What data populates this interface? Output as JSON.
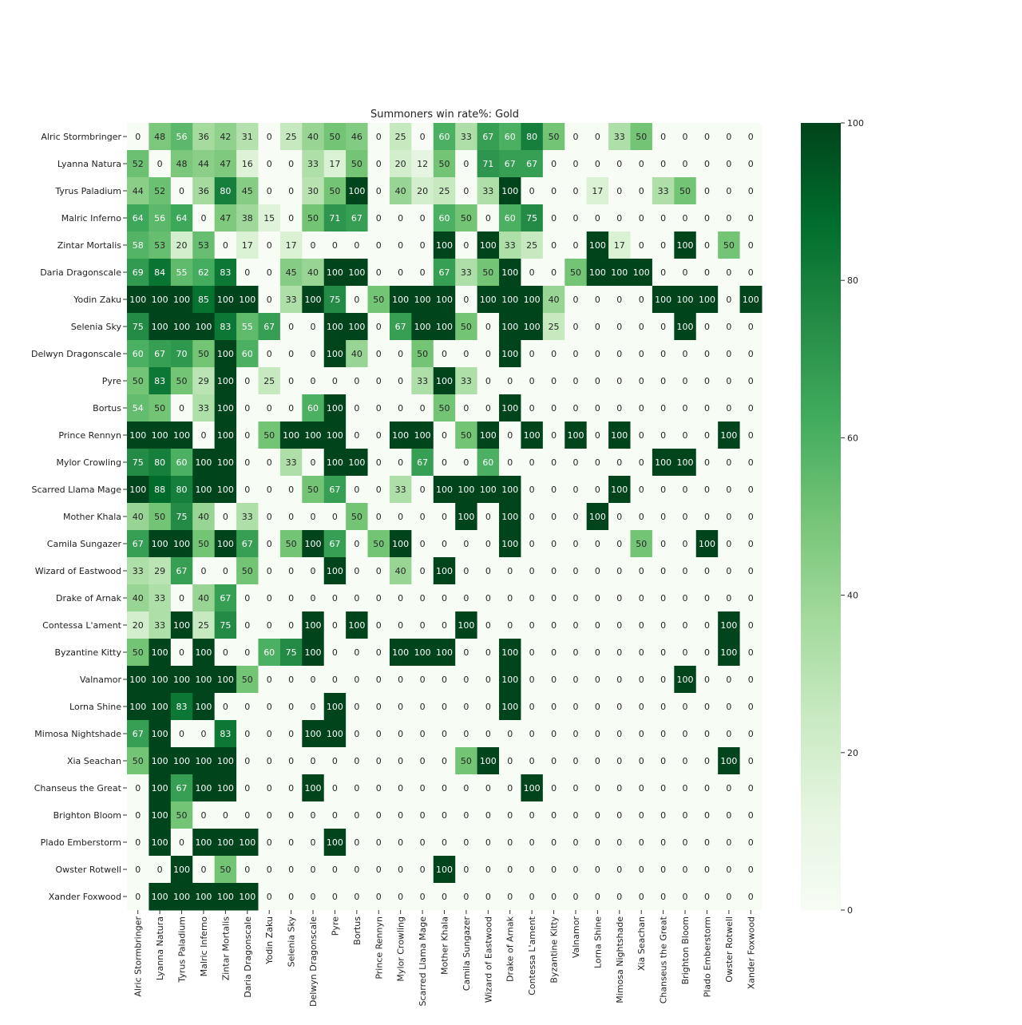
{
  "chart_data": {
    "type": "heatmap",
    "title": "Summoners win rate%: Gold",
    "x": [
      "Alric Stormbringer",
      "Lyanna Natura",
      "Tyrus Paladium",
      "Malric Inferno",
      "Zintar Mortalis",
      "Daria Dragonscale",
      "Yodin Zaku",
      "Selenia Sky",
      "Delwyn Dragonscale",
      "Pyre",
      "Bortus",
      "Prince Rennyn",
      "Mylor Crowling",
      "Scarred Llama Mage",
      "Mother Khala",
      "Camila Sungazer",
      "Wizard of Eastwood",
      "Drake of Arnak",
      "Contessa L'ament",
      "Byzantine Kitty",
      "Valnamor",
      "Lorna Shine",
      "Mimosa Nightshade",
      "Xia Seachan",
      "Chanseus the Great",
      "Brighton Bloom",
      "Plado Emberstorm",
      "Owster Rotwell",
      "Xander Foxwood"
    ],
    "y": [
      "Alric Stormbringer",
      "Lyanna Natura",
      "Tyrus Paladium",
      "Malric Inferno",
      "Zintar Mortalis",
      "Daria Dragonscale",
      "Yodin Zaku",
      "Selenia Sky",
      "Delwyn Dragonscale",
      "Pyre",
      "Bortus",
      "Prince Rennyn",
      "Mylor Crowling",
      "Scarred Llama Mage",
      "Mother Khala",
      "Camila Sungazer",
      "Wizard of Eastwood",
      "Drake of Arnak",
      "Contessa L'ament",
      "Byzantine Kitty",
      "Valnamor",
      "Lorna Shine",
      "Mimosa Nightshade",
      "Xia Seachan",
      "Chanseus the Great",
      "Brighton Bloom",
      "Plado Emberstorm",
      "Owster Rotwell",
      "Xander Foxwood"
    ],
    "z": [
      [
        0,
        48,
        56,
        36,
        42,
        31,
        0,
        25,
        40,
        50,
        46,
        0,
        25,
        0,
        60,
        33,
        67,
        60,
        80,
        50,
        0,
        0,
        33,
        50,
        0,
        0,
        0,
        0,
        0
      ],
      [
        52,
        0,
        48,
        44,
        47,
        16,
        0,
        0,
        33,
        17,
        50,
        0,
        20,
        12,
        50,
        0,
        71,
        67,
        67,
        0,
        0,
        0,
        0,
        0,
        0,
        0,
        0,
        0,
        0
      ],
      [
        44,
        52,
        0,
        36,
        80,
        45,
        0,
        0,
        30,
        50,
        100,
        0,
        40,
        20,
        25,
        0,
        33,
        100,
        0,
        0,
        0,
        17,
        0,
        0,
        33,
        50,
        0,
        0,
        0
      ],
      [
        64,
        56,
        64,
        0,
        47,
        38,
        15,
        0,
        50,
        71,
        67,
        0,
        0,
        0,
        60,
        50,
        0,
        60,
        75,
        0,
        0,
        0,
        0,
        0,
        0,
        0,
        0,
        0,
        0
      ],
      [
        58,
        53,
        20,
        53,
        0,
        17,
        0,
        17,
        0,
        0,
        0,
        0,
        0,
        0,
        100,
        0,
        100,
        33,
        25,
        0,
        0,
        100,
        17,
        0,
        0,
        100,
        0,
        50,
        0
      ],
      [
        69,
        84,
        55,
        62,
        83,
        0,
        0,
        45,
        40,
        100,
        100,
        0,
        0,
        0,
        67,
        33,
        50,
        100,
        0,
        0,
        50,
        100,
        100,
        100,
        0,
        0,
        0,
        0,
        0
      ],
      [
        100,
        100,
        100,
        85,
        100,
        100,
        0,
        33,
        100,
        75,
        0,
        50,
        100,
        100,
        100,
        0,
        100,
        100,
        100,
        40,
        0,
        0,
        0,
        0,
        100,
        100,
        100,
        0,
        100
      ],
      [
        75,
        100,
        100,
        100,
        83,
        55,
        67,
        0,
        0,
        100,
        100,
        0,
        67,
        100,
        100,
        50,
        0,
        100,
        100,
        25,
        0,
        0,
        0,
        0,
        0,
        100,
        0,
        0,
        0
      ],
      [
        60,
        67,
        70,
        50,
        100,
        60,
        0,
        0,
        0,
        100,
        40,
        0,
        0,
        50,
        0,
        0,
        0,
        100,
        0,
        0,
        0,
        0,
        0,
        0,
        0,
        0,
        0,
        0,
        0
      ],
      [
        50,
        83,
        50,
        29,
        100,
        0,
        25,
        0,
        0,
        0,
        0,
        0,
        0,
        33,
        100,
        33,
        0,
        0,
        0,
        0,
        0,
        0,
        0,
        0,
        0,
        0,
        0,
        0,
        0
      ],
      [
        54,
        50,
        0,
        33,
        100,
        0,
        0,
        0,
        60,
        100,
        0,
        0,
        0,
        0,
        50,
        0,
        0,
        100,
        0,
        0,
        0,
        0,
        0,
        0,
        0,
        0,
        0,
        0,
        0
      ],
      [
        100,
        100,
        100,
        0,
        100,
        0,
        50,
        100,
        100,
        100,
        0,
        0,
        100,
        100,
        0,
        50,
        100,
        0,
        100,
        0,
        100,
        0,
        100,
        0,
        0,
        0,
        0,
        100,
        0
      ],
      [
        75,
        80,
        60,
        100,
        100,
        0,
        0,
        33,
        0,
        100,
        100,
        0,
        0,
        67,
        0,
        0,
        60,
        0,
        0,
        0,
        0,
        0,
        0,
        0,
        100,
        100,
        0,
        0,
        0
      ],
      [
        100,
        88,
        80,
        100,
        100,
        0,
        0,
        0,
        50,
        67,
        0,
        0,
        33,
        0,
        100,
        100,
        100,
        100,
        0,
        0,
        0,
        0,
        100,
        0,
        0,
        0,
        0,
        0,
        0
      ],
      [
        40,
        50,
        75,
        40,
        0,
        33,
        0,
        0,
        0,
        0,
        50,
        0,
        0,
        0,
        0,
        100,
        0,
        100,
        0,
        0,
        0,
        100,
        0,
        0,
        0,
        0,
        0,
        0,
        0
      ],
      [
        67,
        100,
        100,
        50,
        100,
        67,
        0,
        50,
        100,
        67,
        0,
        50,
        100,
        0,
        0,
        0,
        0,
        100,
        0,
        0,
        0,
        0,
        0,
        50,
        0,
        0,
        100,
        0,
        0
      ],
      [
        33,
        29,
        67,
        0,
        0,
        50,
        0,
        0,
        0,
        100,
        0,
        0,
        40,
        0,
        100,
        0,
        0,
        0,
        0,
        0,
        0,
        0,
        0,
        0,
        0,
        0,
        0,
        0,
        0
      ],
      [
        40,
        33,
        0,
        40,
        67,
        0,
        0,
        0,
        0,
        0,
        0,
        0,
        0,
        0,
        0,
        0,
        0,
        0,
        0,
        0,
        0,
        0,
        0,
        0,
        0,
        0,
        0,
        0,
        0
      ],
      [
        20,
        33,
        100,
        25,
        75,
        0,
        0,
        0,
        100,
        0,
        100,
        0,
        0,
        0,
        0,
        100,
        0,
        0,
        0,
        0,
        0,
        0,
        0,
        0,
        0,
        0,
        0,
        100,
        0
      ],
      [
        50,
        100,
        0,
        100,
        0,
        0,
        60,
        75,
        100,
        0,
        0,
        0,
        100,
        100,
        100,
        0,
        0,
        100,
        0,
        0,
        0,
        0,
        0,
        0,
        0,
        0,
        0,
        100,
        0
      ],
      [
        100,
        100,
        100,
        100,
        100,
        50,
        0,
        0,
        0,
        0,
        0,
        0,
        0,
        0,
        0,
        0,
        0,
        100,
        0,
        0,
        0,
        0,
        0,
        0,
        0,
        100,
        0,
        0,
        0
      ],
      [
        100,
        100,
        83,
        100,
        0,
        0,
        0,
        0,
        0,
        100,
        0,
        0,
        0,
        0,
        0,
        0,
        0,
        100,
        0,
        0,
        0,
        0,
        0,
        0,
        0,
        0,
        0,
        0,
        0
      ],
      [
        67,
        100,
        0,
        0,
        83,
        0,
        0,
        0,
        100,
        100,
        0,
        0,
        0,
        0,
        0,
        0,
        0,
        0,
        0,
        0,
        0,
        0,
        0,
        0,
        0,
        0,
        0,
        0,
        0
      ],
      [
        50,
        100,
        100,
        100,
        100,
        0,
        0,
        0,
        0,
        0,
        0,
        0,
        0,
        0,
        0,
        50,
        100,
        0,
        0,
        0,
        0,
        0,
        0,
        0,
        0,
        0,
        0,
        100,
        0
      ],
      [
        0,
        100,
        67,
        100,
        100,
        0,
        0,
        0,
        100,
        0,
        0,
        0,
        0,
        0,
        0,
        0,
        0,
        0,
        100,
        0,
        0,
        0,
        0,
        0,
        0,
        0,
        0,
        0,
        0
      ],
      [
        0,
        100,
        50,
        0,
        0,
        0,
        0,
        0,
        0,
        0,
        0,
        0,
        0,
        0,
        0,
        0,
        0,
        0,
        0,
        0,
        0,
        0,
        0,
        0,
        0,
        0,
        0,
        0,
        0
      ],
      [
        0,
        100,
        0,
        100,
        100,
        100,
        0,
        0,
        0,
        100,
        0,
        0,
        0,
        0,
        0,
        0,
        0,
        0,
        0,
        0,
        0,
        0,
        0,
        0,
        0,
        0,
        0,
        0,
        0
      ],
      [
        0,
        0,
        100,
        0,
        50,
        0,
        0,
        0,
        0,
        0,
        0,
        0,
        0,
        0,
        100,
        0,
        0,
        0,
        0,
        0,
        0,
        0,
        0,
        0,
        0,
        0,
        0,
        0,
        0
      ],
      [
        0,
        100,
        100,
        100,
        100,
        100,
        0,
        0,
        0,
        0,
        0,
        0,
        0,
        0,
        0,
        0,
        0,
        0,
        0,
        0,
        0,
        0,
        0,
        0,
        0,
        0,
        0,
        0,
        0
      ]
    ],
    "zlim": [
      0,
      100
    ],
    "colorbar_ticks": [
      0,
      20,
      40,
      60,
      80,
      100
    ],
    "colormap": "Greens"
  }
}
